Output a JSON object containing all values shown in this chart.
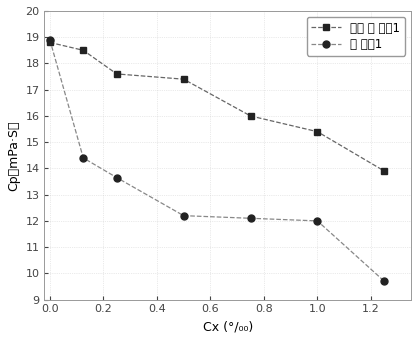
{
  "series1_label": "对照 降 粘制1",
  "series2_label": "降 粘制1",
  "series1_x": [
    0.0,
    0.125,
    0.25,
    0.5,
    0.75,
    1.0,
    1.25
  ],
  "series1_y": [
    18.8,
    18.5,
    17.6,
    17.4,
    16.0,
    15.4,
    13.9
  ],
  "series2_x": [
    0.0,
    0.125,
    0.25,
    0.5,
    0.75,
    1.0,
    1.25
  ],
  "series2_y": [
    18.9,
    14.4,
    13.65,
    12.2,
    12.1,
    12.0,
    9.7
  ],
  "line_color1": "#666666",
  "line_color2": "#888888",
  "marker_color": "#222222",
  "xlabel": "Cx (°/₀₀)",
  "ylabel": "Cp（mPa’S）",
  "xlim": [
    -0.02,
    1.35
  ],
  "ylim": [
    9,
    20
  ],
  "yticks": [
    9,
    10,
    11,
    12,
    13,
    14,
    15,
    16,
    17,
    18,
    19,
    20
  ],
  "xticks": [
    0.0,
    0.2,
    0.4,
    0.6,
    0.8,
    1.0,
    1.2
  ],
  "background_color": "#ffffff",
  "axis_fontsize": 9,
  "legend_fontsize": 8.5
}
